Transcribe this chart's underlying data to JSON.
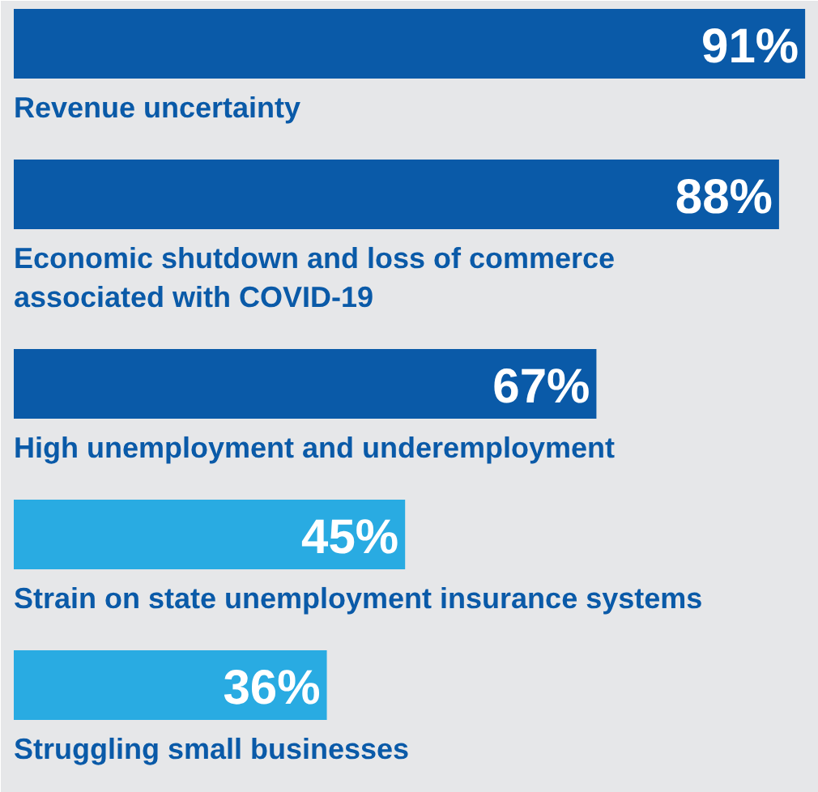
{
  "chart_data": {
    "type": "bar",
    "orientation": "horizontal",
    "categories": [
      "Revenue uncertainty",
      "Economic shutdown and loss of commerce associated with COVID-19",
      "High unemployment and underemployment",
      "Strain on state unemployment insurance systems",
      "Struggling small businesses"
    ],
    "values": [
      91,
      88,
      67,
      45,
      36
    ],
    "colors": [
      "#0a5aa8",
      "#0a5aa8",
      "#0a5aa8",
      "#29abe2",
      "#29abe2"
    ],
    "value_labels": [
      "91%",
      "88%",
      "67%",
      "45%",
      "36%"
    ]
  }
}
